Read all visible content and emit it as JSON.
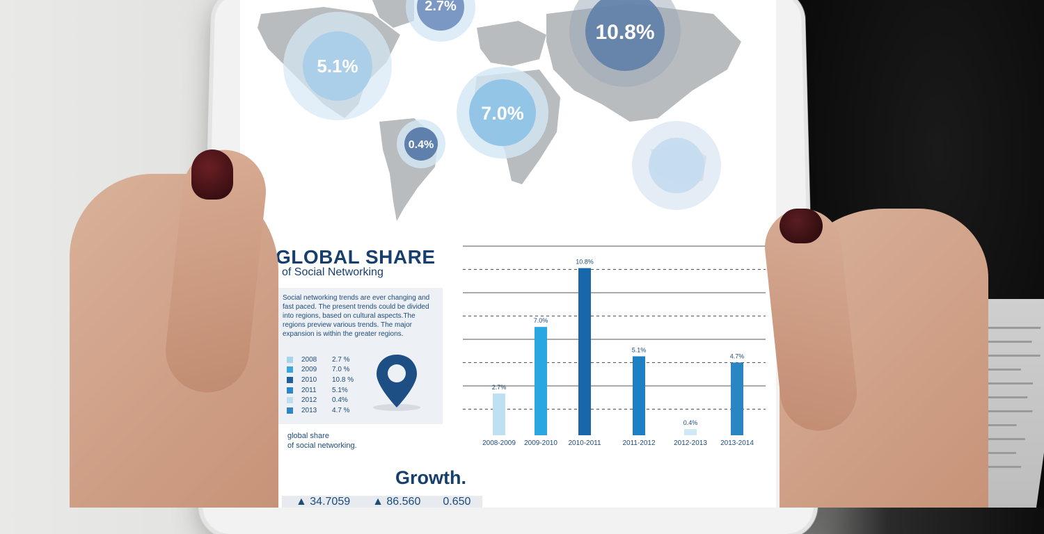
{
  "infographic": {
    "title": "GLOBAL SHARE",
    "subtitle": "of Social Networking",
    "description": "Social networking trends are ever changing and fast paced. The present trends could be divided into regions, based on cultural aspects.The regions preview various trends. The major expansion is within the greater regions.",
    "legend": [
      {
        "year": "2008",
        "value": "2.7 %",
        "color": "#a9d3ea"
      },
      {
        "year": "2009",
        "value": "7.0 %",
        "color": "#3ba6de"
      },
      {
        "year": "2010",
        "value": "10.8 %",
        "color": "#1f5fa0"
      },
      {
        "year": "2011",
        "value": "5.1%",
        "color": "#2a86c8"
      },
      {
        "year": "2012",
        "value": "0.4%",
        "color": "#bcdcf0"
      },
      {
        "year": "2013",
        "value": "4.7 %",
        "color": "#2f85c2"
      }
    ],
    "footnote_line1": "global share",
    "footnote_line2": "of social networking.",
    "growth_title": "Growth.",
    "stats": [
      "▲ 34.7059",
      "▲ 86.560",
      "0.650"
    ]
  },
  "map_bubbles": [
    {
      "label": "2.7%",
      "region": "europe"
    },
    {
      "label": "10.8%",
      "region": "asia"
    },
    {
      "label": "5.1%",
      "region": "north-america"
    },
    {
      "label": "7.0%",
      "region": "africa"
    },
    {
      "label": "0.4%",
      "region": "south-america"
    },
    {
      "label": "",
      "region": "australia"
    }
  ],
  "chart_data": {
    "type": "bar",
    "categories": [
      "2008-2009",
      "2009-2010",
      "2010-2011",
      "2011-2012",
      "2012-2013",
      "2013-2014"
    ],
    "values": [
      2.7,
      7.0,
      10.8,
      5.1,
      0.4,
      4.7
    ],
    "value_labels": [
      "2.7%",
      "7.0%",
      "10.8%",
      "5.1%",
      "0.4%",
      "4.7%"
    ],
    "colors": [
      "#bfe0f3",
      "#2aa7e0",
      "#1867ab",
      "#1d7fc4",
      "#cfe7f6",
      "#2a86c2"
    ],
    "ylim": [
      0,
      11.5
    ],
    "grid": true
  }
}
